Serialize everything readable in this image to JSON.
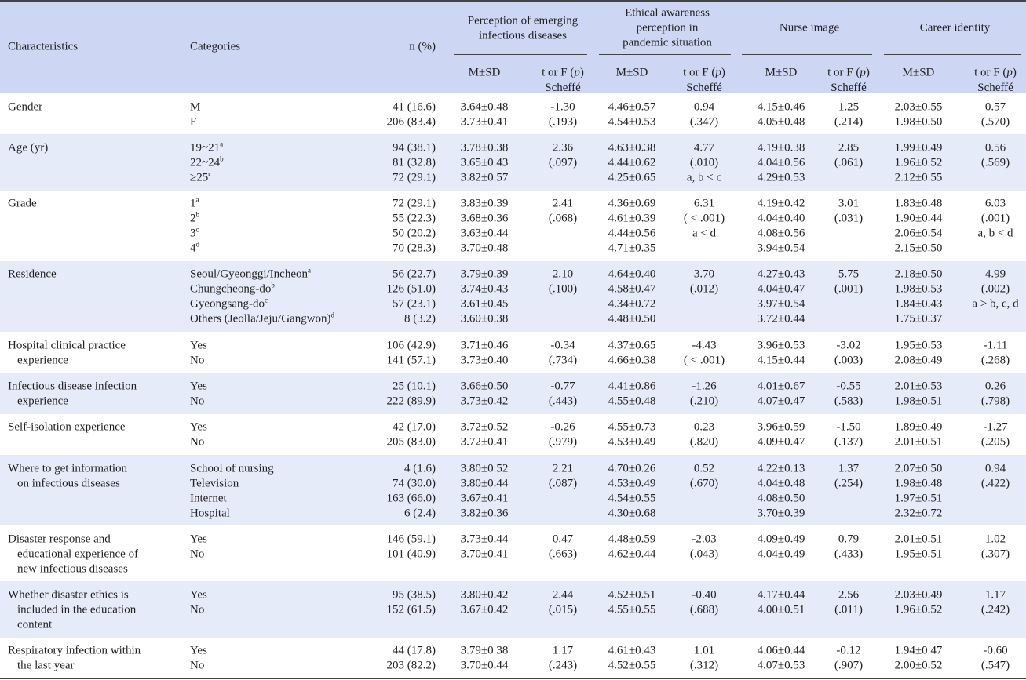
{
  "header": {
    "characteristics": "Characteristics",
    "categories": "Categories",
    "n": "n (%)",
    "groups": [
      [
        "Perception of emerging",
        "infectious diseases"
      ],
      [
        "Ethical awareness",
        "perception in",
        "pandemic situation"
      ],
      [
        "Nurse image"
      ],
      [
        "Career identity"
      ]
    ],
    "msd": "M±SD",
    "stat": [
      "t or F (",
      "p",
      ")"
    ],
    "scheffe": "Scheffé"
  },
  "rows": [
    {
      "characteristic": [
        "Gender"
      ],
      "categories": [
        "M",
        "F"
      ],
      "n": [
        "41 (16.6)",
        "206 (83.4)"
      ],
      "measures": [
        {
          "m": [
            "3.64±0.48",
            "3.73±0.41"
          ],
          "t": [
            "-1.30",
            "(.193)"
          ]
        },
        {
          "m": [
            "4.46±0.57",
            "4.54±0.53"
          ],
          "t": [
            "0.94",
            "(.347)"
          ]
        },
        {
          "m": [
            "4.15±0.46",
            "4.05±0.48"
          ],
          "t": [
            "1.25",
            "(.214)"
          ]
        },
        {
          "m": [
            "2.03±0.55",
            "1.98±0.50"
          ],
          "t": [
            "0.57",
            "(.570)"
          ]
        }
      ]
    },
    {
      "characteristic": [
        "Age (yr)"
      ],
      "categories": [
        {
          "label": "19~21",
          "sup": "a"
        },
        {
          "label": "22~24",
          "sup": "b"
        },
        {
          "label": "≥25",
          "sup": "c"
        }
      ],
      "n": [
        "94 (38.1)",
        "81 (32.8)",
        "72 (29.1)"
      ],
      "measures": [
        {
          "m": [
            "3.78±0.38",
            "3.65±0.43",
            "3.82±0.57"
          ],
          "t": [
            "2.36",
            "(.097)"
          ]
        },
        {
          "m": [
            "4.63±0.38",
            "4.44±0.62",
            "4.25±0.65"
          ],
          "t": [
            "4.77",
            "(.010)",
            "a, b < c"
          ]
        },
        {
          "m": [
            "4.19±0.38",
            "4.04±0.56",
            "4.29±0.53"
          ],
          "t": [
            "2.85",
            "(.061)"
          ]
        },
        {
          "m": [
            "1.99±0.49",
            "1.96±0.52",
            "2.12±0.55"
          ],
          "t": [
            "0.56",
            "(.569)"
          ]
        }
      ]
    },
    {
      "characteristic": [
        "Grade"
      ],
      "categories": [
        {
          "label": "1",
          "sup": "a"
        },
        {
          "label": "2",
          "sup": "b"
        },
        {
          "label": "3",
          "sup": "c"
        },
        {
          "label": "4",
          "sup": "d"
        }
      ],
      "n": [
        "72 (29.1)",
        "55 (22.3)",
        "50 (20.2)",
        "70 (28.3)"
      ],
      "measures": [
        {
          "m": [
            "3.83±0.39",
            "3.68±0.36",
            "3.63±0.44",
            "3.70±0.48"
          ],
          "t": [
            "2.41",
            "(.068)"
          ]
        },
        {
          "m": [
            "4.36±0.69",
            "4.61±0.39",
            "4.44±0.56",
            "4.71±0.35"
          ],
          "t": [
            "6.31",
            "( < .001)",
            "a < d"
          ]
        },
        {
          "m": [
            "4.19±0.42",
            "4.04±0.40",
            "4.08±0.56",
            "3.94±0.54"
          ],
          "t": [
            "3.01",
            "(.031)"
          ]
        },
        {
          "m": [
            "1.83±0.48",
            "1.90±0.44",
            "2.06±0.54",
            "2.15±0.50"
          ],
          "t": [
            "6.03",
            "(.001)",
            "a, b < d"
          ]
        }
      ]
    },
    {
      "characteristic": [
        "Residence"
      ],
      "categories": [
        {
          "label": "Seoul/Gyeonggi/Incheon",
          "sup": "a"
        },
        {
          "label": "Chungcheong-do",
          "sup": "b"
        },
        {
          "label": "Gyeongsang-do",
          "sup": "c"
        },
        {
          "label": "Others (Jeolla/Jeju/Gangwon)",
          "sup": "d"
        }
      ],
      "n": [
        "56 (22.7)",
        "126 (51.0)",
        "57 (23.1)",
        "8 (3.2)"
      ],
      "measures": [
        {
          "m": [
            "3.79±0.39",
            "3.74±0.43",
            "3.61±0.45",
            "3.60±0.38"
          ],
          "t": [
            "2.10",
            "(.100)"
          ]
        },
        {
          "m": [
            "4.64±0.40",
            "4.58±0.47",
            "4.34±0.72",
            "4.48±0.50"
          ],
          "t": [
            "3.70",
            "(.012)"
          ]
        },
        {
          "m": [
            "4.27±0.43",
            "4.04±0.47",
            "3.97±0.54",
            "3.72±0.44"
          ],
          "t": [
            "5.75",
            "(.001)"
          ]
        },
        {
          "m": [
            "2.18±0.50",
            "1.98±0.53",
            "1.84±0.43",
            "1.75±0.37"
          ],
          "t": [
            "4.99",
            "(.002)",
            "a > b, c, d"
          ]
        }
      ]
    },
    {
      "characteristic": [
        "Hospital clinical practice",
        "experience"
      ],
      "categories": [
        "Yes",
        "No"
      ],
      "n": [
        "106 (42.9)",
        "141 (57.1)"
      ],
      "measures": [
        {
          "m": [
            "3.71±0.46",
            "3.73±0.40"
          ],
          "t": [
            "-0.34",
            "(.734)"
          ]
        },
        {
          "m": [
            "4.37±0.65",
            "4.66±0.38"
          ],
          "t": [
            "-4.43",
            "( < .001)"
          ]
        },
        {
          "m": [
            "3.96±0.53",
            "4.15±0.44"
          ],
          "t": [
            "-3.02",
            "(.003)"
          ]
        },
        {
          "m": [
            "1.95±0.53",
            "2.08±0.49"
          ],
          "t": [
            "-1.11",
            "(.268)"
          ]
        }
      ]
    },
    {
      "characteristic": [
        "Infectious disease infection",
        "experience"
      ],
      "categories": [
        "Yes",
        "No"
      ],
      "n": [
        "25 (10.1)",
        "222 (89.9)"
      ],
      "measures": [
        {
          "m": [
            "3.66±0.50",
            "3.73±0.42"
          ],
          "t": [
            "-0.77",
            "(.443)"
          ]
        },
        {
          "m": [
            "4.41±0.86",
            "4.55±0.48"
          ],
          "t": [
            "-1.26",
            "(.210)"
          ]
        },
        {
          "m": [
            "4.01±0.67",
            "4.07±0.47"
          ],
          "t": [
            "-0.55",
            "(.583)"
          ]
        },
        {
          "m": [
            "2.01±0.53",
            "1.98±0.51"
          ],
          "t": [
            "0.26",
            "(.798)"
          ]
        }
      ]
    },
    {
      "characteristic": [
        "Self-isolation experience"
      ],
      "categories": [
        "Yes",
        "No"
      ],
      "n": [
        "42 (17.0)",
        "205 (83.0)"
      ],
      "measures": [
        {
          "m": [
            "3.72±0.52",
            "3.72±0.41"
          ],
          "t": [
            "-0.26",
            "(.979)"
          ]
        },
        {
          "m": [
            "4.55±0.73",
            "4.53±0.49"
          ],
          "t": [
            "0.23",
            "(.820)"
          ]
        },
        {
          "m": [
            "3.96±0.59",
            "4.09±0.47"
          ],
          "t": [
            "-1.50",
            "(.137)"
          ]
        },
        {
          "m": [
            "1.89±0.49",
            "2.01±0.51"
          ],
          "t": [
            "-1.27",
            "(.205)"
          ]
        }
      ]
    },
    {
      "characteristic": [
        "Where to get information",
        "on infectious diseases"
      ],
      "categories": [
        "School of nursing",
        "Television",
        "Internet",
        "Hospital"
      ],
      "n": [
        "4 (1.6)",
        "74 (30.0)",
        "163 (66.0)",
        "6 (2.4)"
      ],
      "measures": [
        {
          "m": [
            "3.80±0.52",
            "3.80±0.44",
            "3.67±0.41",
            "3.82±0.36"
          ],
          "t": [
            "2.21",
            "(.087)"
          ]
        },
        {
          "m": [
            "4.70±0.26",
            "4.53±0.49",
            "4.54±0.55",
            "4.30±0.68"
          ],
          "t": [
            "0.52",
            "(.670)"
          ]
        },
        {
          "m": [
            "4.22±0.13",
            "4.04±0.48",
            "4.08±0.50",
            "3.70±0.39"
          ],
          "t": [
            "1.37",
            "(.254)"
          ]
        },
        {
          "m": [
            "2.07±0.50",
            "1.98±0.48",
            "1.97±0.51",
            "2.32±0.72"
          ],
          "t": [
            "0.94",
            "(.422)"
          ]
        }
      ]
    },
    {
      "characteristic": [
        "Disaster response and",
        "educational experience of",
        "new infectious diseases"
      ],
      "categories": [
        "Yes",
        "No"
      ],
      "n": [
        "146 (59.1)",
        "101 (40.9)"
      ],
      "measures": [
        {
          "m": [
            "3.73±0.44",
            "3.70±0.41"
          ],
          "t": [
            "0.47",
            "(.663)"
          ]
        },
        {
          "m": [
            "4.48±0.59",
            "4.62±0.44"
          ],
          "t": [
            "-2.03",
            "(.043)"
          ]
        },
        {
          "m": [
            "4.09±0.49",
            "4.04±0.49"
          ],
          "t": [
            "0.79",
            "(.433)"
          ]
        },
        {
          "m": [
            "2.01±0.51",
            "1.95±0.51"
          ],
          "t": [
            "1.02",
            "(.307)"
          ]
        }
      ]
    },
    {
      "characteristic": [
        "Whether disaster ethics is",
        "included in the education",
        "content"
      ],
      "categories": [
        "Yes",
        "No"
      ],
      "n": [
        "95 (38.5)",
        "152 (61.5)"
      ],
      "measures": [
        {
          "m": [
            "3.80±0.42",
            "3.67±0.42"
          ],
          "t": [
            "2.44",
            "(.015)"
          ]
        },
        {
          "m": [
            "4.52±0.51",
            "4.55±0.55"
          ],
          "t": [
            "-0.40",
            "(.688)"
          ]
        },
        {
          "m": [
            "4.17±0.44",
            "4.00±0.51"
          ],
          "t": [
            "2.56",
            "(.011)"
          ]
        },
        {
          "m": [
            "2.03±0.49",
            "1.96±0.52"
          ],
          "t": [
            "1.17",
            "(.242)"
          ]
        }
      ]
    },
    {
      "characteristic": [
        "Respiratory infection within",
        "the last year"
      ],
      "categories": [
        "Yes",
        "No"
      ],
      "n": [
        "44 (17.8)",
        "203 (82.2)"
      ],
      "measures": [
        {
          "m": [
            "3.79±0.38",
            "3.70±0.44"
          ],
          "t": [
            "1.17",
            "(.243)"
          ]
        },
        {
          "m": [
            "4.61±0.43",
            "4.52±0.55"
          ],
          "t": [
            "1.01",
            "(.312)"
          ]
        },
        {
          "m": [
            "4.06±0.44",
            "4.07±0.53"
          ],
          "t": [
            "-0.12",
            "(.907)"
          ]
        },
        {
          "m": [
            "1.94±0.47",
            "2.00±0.52"
          ],
          "t": [
            "-0.60",
            "(.547)"
          ]
        }
      ]
    }
  ]
}
